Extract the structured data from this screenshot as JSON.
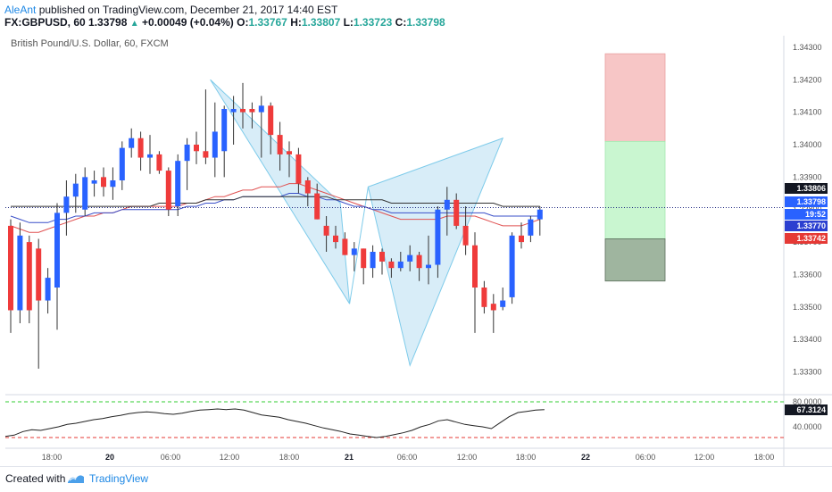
{
  "header": {
    "author": "AleAnt",
    "published_text": "published on TradingView.com, December 21, 2017 14:40 EST",
    "symbol": "FX:GBPUSD, 60",
    "last_price": "1.33798",
    "change": "+0.00049 (+0.04%)",
    "o_label": "O:",
    "o_value": "1.33767",
    "h_label": "H:",
    "h_value": "1.33807",
    "l_label": "L:",
    "l_value": "1.33723",
    "c_label": "C:",
    "c_value": "1.33798"
  },
  "footer": {
    "created_with": "Created with",
    "brand": "TradingView"
  },
  "chart_data": {
    "type": "candlestick",
    "title": "British Pound/U.S. Dollar, 60, FXCM",
    "colors": {
      "up": "#2962ff",
      "down": "#ef3b3b",
      "pattern_fill": "#a8d8f0",
      "pattern_stroke": "#7ecbea",
      "ma_red": "#e05050",
      "ma_blue": "#3a4fc8",
      "ma_black": "#333333",
      "rsi_line": "#222222",
      "rsi_upper": "#33cc33",
      "rsi_lower": "#e53935"
    },
    "price_axis": {
      "min": 1.3323,
      "max": 1.3433,
      "ticks": [
        "1.34300",
        "1.34200",
        "1.34100",
        "1.34000",
        "1.33900",
        "1.33800",
        "1.33700",
        "1.33600",
        "1.33500",
        "1.33400",
        "1.33300"
      ]
    },
    "time_axis": {
      "labels": [
        {
          "text": "18:00",
          "bold": false
        },
        {
          "text": "20",
          "bold": true
        },
        {
          "text": "06:00",
          "bold": false
        },
        {
          "text": "12:00",
          "bold": false
        },
        {
          "text": "18:00",
          "bold": false
        },
        {
          "text": "21",
          "bold": true
        },
        {
          "text": "06:00",
          "bold": false
        },
        {
          "text": "12:00",
          "bold": false
        },
        {
          "text": "18:00",
          "bold": false
        },
        {
          "text": "22",
          "bold": true
        },
        {
          "text": "06:00",
          "bold": false
        },
        {
          "text": "12:00",
          "bold": false
        },
        {
          "text": "18:00",
          "bold": false
        }
      ]
    },
    "candles": [
      {
        "o": 1.3375,
        "h": 1.3377,
        "l": 1.3342,
        "c": 1.3349
      },
      {
        "o": 1.3349,
        "h": 1.3376,
        "l": 1.3345,
        "c": 1.3372
      },
      {
        "o": 1.337,
        "h": 1.3372,
        "l": 1.3345,
        "c": 1.3349
      },
      {
        "o": 1.3368,
        "h": 1.3371,
        "l": 1.3331,
        "c": 1.3352
      },
      {
        "o": 1.3352,
        "h": 1.3362,
        "l": 1.3348,
        "c": 1.3359
      },
      {
        "o": 1.3356,
        "h": 1.3382,
        "l": 1.3343,
        "c": 1.3379
      },
      {
        "o": 1.3379,
        "h": 1.3389,
        "l": 1.3372,
        "c": 1.3384
      },
      {
        "o": 1.3384,
        "h": 1.3391,
        "l": 1.3379,
        "c": 1.3388
      },
      {
        "o": 1.338,
        "h": 1.3393,
        "l": 1.3378,
        "c": 1.339
      },
      {
        "o": 1.3388,
        "h": 1.3392,
        "l": 1.3384,
        "c": 1.3389
      },
      {
        "o": 1.339,
        "h": 1.3393,
        "l": 1.3384,
        "c": 1.3387
      },
      {
        "o": 1.3387,
        "h": 1.3393,
        "l": 1.3383,
        "c": 1.3389
      },
      {
        "o": 1.3389,
        "h": 1.3401,
        "l": 1.3386,
        "c": 1.3399
      },
      {
        "o": 1.3399,
        "h": 1.3405,
        "l": 1.3396,
        "c": 1.3402
      },
      {
        "o": 1.3402,
        "h": 1.3404,
        "l": 1.3392,
        "c": 1.3396
      },
      {
        "o": 1.3396,
        "h": 1.3403,
        "l": 1.3391,
        "c": 1.3397
      },
      {
        "o": 1.3397,
        "h": 1.3398,
        "l": 1.3391,
        "c": 1.3392
      },
      {
        "o": 1.3392,
        "h": 1.3393,
        "l": 1.3378,
        "c": 1.338
      },
      {
        "o": 1.3381,
        "h": 1.3397,
        "l": 1.3378,
        "c": 1.3395
      },
      {
        "o": 1.3395,
        "h": 1.3402,
        "l": 1.3386,
        "c": 1.34
      },
      {
        "o": 1.34,
        "h": 1.3404,
        "l": 1.3394,
        "c": 1.3398
      },
      {
        "o": 1.3398,
        "h": 1.3417,
        "l": 1.3394,
        "c": 1.3396
      },
      {
        "o": 1.3396,
        "h": 1.3413,
        "l": 1.339,
        "c": 1.3404
      },
      {
        "o": 1.3398,
        "h": 1.3412,
        "l": 1.339,
        "c": 1.3411
      },
      {
        "o": 1.341,
        "h": 1.3415,
        "l": 1.34,
        "c": 1.3411
      },
      {
        "o": 1.3411,
        "h": 1.3419,
        "l": 1.3405,
        "c": 1.341
      },
      {
        "o": 1.3411,
        "h": 1.3413,
        "l": 1.3405,
        "c": 1.341
      },
      {
        "o": 1.341,
        "h": 1.3415,
        "l": 1.3396,
        "c": 1.3412
      },
      {
        "o": 1.3412,
        "h": 1.3413,
        "l": 1.3397,
        "c": 1.3403
      },
      {
        "o": 1.3403,
        "h": 1.3407,
        "l": 1.3392,
        "c": 1.3397
      },
      {
        "o": 1.3398,
        "h": 1.3401,
        "l": 1.339,
        "c": 1.3397
      },
      {
        "o": 1.3397,
        "h": 1.3399,
        "l": 1.3385,
        "c": 1.3388
      },
      {
        "o": 1.3389,
        "h": 1.339,
        "l": 1.3381,
        "c": 1.3385
      },
      {
        "o": 1.3385,
        "h": 1.3388,
        "l": 1.3377,
        "c": 1.3377
      },
      {
        "o": 1.3375,
        "h": 1.3378,
        "l": 1.3367,
        "c": 1.3372
      },
      {
        "o": 1.3372,
        "h": 1.3375,
        "l": 1.3368,
        "c": 1.337
      },
      {
        "o": 1.3371,
        "h": 1.3373,
        "l": 1.3366,
        "c": 1.3366
      },
      {
        "o": 1.3366,
        "h": 1.337,
        "l": 1.3361,
        "c": 1.3368
      },
      {
        "o": 1.3368,
        "h": 1.3368,
        "l": 1.3357,
        "c": 1.3362
      },
      {
        "o": 1.3362,
        "h": 1.3369,
        "l": 1.3359,
        "c": 1.3367
      },
      {
        "o": 1.3367,
        "h": 1.3368,
        "l": 1.336,
        "c": 1.3364
      },
      {
        "o": 1.3364,
        "h": 1.3365,
        "l": 1.3359,
        "c": 1.3362
      },
      {
        "o": 1.3362,
        "h": 1.3367,
        "l": 1.3361,
        "c": 1.3364
      },
      {
        "o": 1.3364,
        "h": 1.3369,
        "l": 1.3361,
        "c": 1.3366
      },
      {
        "o": 1.3366,
        "h": 1.3367,
        "l": 1.3358,
        "c": 1.3362
      },
      {
        "o": 1.3362,
        "h": 1.3372,
        "l": 1.3357,
        "c": 1.3363
      },
      {
        "o": 1.3363,
        "h": 1.3381,
        "l": 1.3359,
        "c": 1.338
      },
      {
        "o": 1.338,
        "h": 1.3387,
        "l": 1.3372,
        "c": 1.3383
      },
      {
        "o": 1.3383,
        "h": 1.3385,
        "l": 1.3374,
        "c": 1.3375
      },
      {
        "o": 1.3375,
        "h": 1.3381,
        "l": 1.3366,
        "c": 1.3369
      },
      {
        "o": 1.3369,
        "h": 1.3373,
        "l": 1.3342,
        "c": 1.3356
      },
      {
        "o": 1.3356,
        "h": 1.3358,
        "l": 1.3348,
        "c": 1.335
      },
      {
        "o": 1.3351,
        "h": 1.3354,
        "l": 1.3342,
        "c": 1.3349
      },
      {
        "o": 1.335,
        "h": 1.3356,
        "l": 1.3349,
        "c": 1.3352
      },
      {
        "o": 1.3353,
        "h": 1.3373,
        "l": 1.3351,
        "c": 1.3372
      },
      {
        "o": 1.3372,
        "h": 1.3376,
        "l": 1.3368,
        "c": 1.337
      },
      {
        "o": 1.3372,
        "h": 1.3378,
        "l": 1.337,
        "c": 1.3377
      },
      {
        "o": 1.3377,
        "h": 1.3381,
        "l": 1.3372,
        "c": 1.338
      }
    ],
    "moving_averages": [
      {
        "name": "",
        "color_key": "ma_red",
        "values": [
          1.3375,
          1.3374,
          1.3373,
          1.3373,
          1.3374,
          1.3375,
          1.3376,
          1.3377,
          1.3378,
          1.3378,
          1.3379,
          1.3379,
          1.338,
          1.3381,
          1.3381,
          1.3381,
          1.3381,
          1.3381,
          1.3381,
          1.3382,
          1.3382,
          1.3383,
          1.3384,
          1.3384,
          1.3385,
          1.3386,
          1.3386,
          1.3387,
          1.3387,
          1.3387,
          1.3388,
          1.3388,
          1.3387,
          1.3386,
          1.3385,
          1.3384,
          1.3383,
          1.3382,
          1.3381,
          1.338,
          1.3379,
          1.3378,
          1.3377,
          1.3377,
          1.3377,
          1.3377,
          1.3377,
          1.3378,
          1.3378,
          1.3378,
          1.3378,
          1.3377,
          1.3376,
          1.3375,
          1.3375,
          1.3375,
          1.3376,
          1.3377
        ]
      },
      {
        "name": "",
        "color_key": "ma_blue",
        "values": [
          1.3378,
          1.3377,
          1.3376,
          1.3376,
          1.3376,
          1.3377,
          1.3377,
          1.3378,
          1.3378,
          1.3379,
          1.3379,
          1.3379,
          1.338,
          1.338,
          1.338,
          1.338,
          1.338,
          1.338,
          1.338,
          1.3381,
          1.3381,
          1.3382,
          1.3382,
          1.3383,
          1.3383,
          1.3384,
          1.3384,
          1.3384,
          1.3384,
          1.3384,
          1.3385,
          1.3385,
          1.3384,
          1.3384,
          1.3383,
          1.3383,
          1.3382,
          1.3381,
          1.3381,
          1.338,
          1.338,
          1.3379,
          1.3379,
          1.3379,
          1.3379,
          1.3379,
          1.3379,
          1.3379,
          1.3379,
          1.3379,
          1.3379,
          1.3379,
          1.3378,
          1.3378,
          1.3378,
          1.3378,
          1.3378,
          1.3378
        ]
      },
      {
        "name": "",
        "color_key": "ma_black",
        "values": [
          1.3381,
          1.3381,
          1.3381,
          1.3381,
          1.3381,
          1.3381,
          1.3381,
          1.3381,
          1.3381,
          1.3381,
          1.3381,
          1.3381,
          1.3381,
          1.3381,
          1.3381,
          1.3381,
          1.3382,
          1.3382,
          1.3382,
          1.3382,
          1.3382,
          1.3383,
          1.3383,
          1.3383,
          1.3383,
          1.3384,
          1.3384,
          1.3384,
          1.3384,
          1.3384,
          1.3384,
          1.3384,
          1.3384,
          1.3384,
          1.3384,
          1.3383,
          1.3383,
          1.3383,
          1.3383,
          1.3383,
          1.3383,
          1.3382,
          1.3382,
          1.3382,
          1.3382,
          1.3382,
          1.3382,
          1.3382,
          1.3382,
          1.3382,
          1.3382,
          1.3382,
          1.3382,
          1.3381,
          1.3381,
          1.3381,
          1.3381,
          1.3381
        ]
      }
    ],
    "harmonic_pattern": {
      "points": [
        {
          "bar": 21.5,
          "price": 1.342
        },
        {
          "bar": 35.5,
          "price": 1.3382
        },
        {
          "bar": 33,
          "price": 1.3382
        },
        {
          "bar": 36.5,
          "price": 1.3351
        },
        {
          "bar": 38.5,
          "price": 1.3387
        },
        {
          "bar": 43,
          "price": 1.3332
        },
        {
          "bar": 49.5,
          "price": 1.3373
        },
        {
          "bar": 53,
          "price": 1.3402
        }
      ]
    },
    "position_box": {
      "stop_top": 1.3428,
      "stop_bottom": 1.3401,
      "target_top": 1.3401,
      "target_bottom": 1.3371,
      "entry_top": 1.3371,
      "entry_bottom": 1.3358
    },
    "current_price_line": 1.33806,
    "price_tags": [
      {
        "text": "1.33806",
        "bg": "#131722",
        "fg": "#ffffff",
        "price": 1.33806
      },
      {
        "text": "1.33798",
        "bg": "#2962ff",
        "fg": "#ffffff",
        "price": 1.33798
      },
      {
        "text": "19:52",
        "bg": "#2962ff",
        "fg": "#ffffff",
        "price": 1.33785
      },
      {
        "text": "1.33770",
        "bg": "#2b3fd0",
        "fg": "#ffffff",
        "price": 1.3377
      },
      {
        "text": "1.33742",
        "bg": "#e53935",
        "fg": "#ffffff",
        "price": 1.33742
      }
    ],
    "oscillator": {
      "ticks": [
        "80.0000",
        "40.0000"
      ],
      "upper_level": 80,
      "lower_level": 20,
      "current_tag": "67.3124",
      "values": [
        22,
        24,
        30,
        33,
        32,
        35,
        38,
        42,
        44,
        47,
        50,
        52,
        55,
        57,
        60,
        62,
        63,
        62,
        60,
        59,
        61,
        64,
        66,
        67,
        68,
        67,
        68,
        66,
        62,
        58,
        56,
        54,
        50,
        47,
        44,
        40,
        36,
        33,
        30,
        26,
        24,
        22,
        20,
        22,
        25,
        28,
        32,
        38,
        42,
        48,
        50,
        46,
        42,
        40,
        38,
        35,
        45,
        55,
        62,
        64,
        66,
        67
      ]
    }
  }
}
